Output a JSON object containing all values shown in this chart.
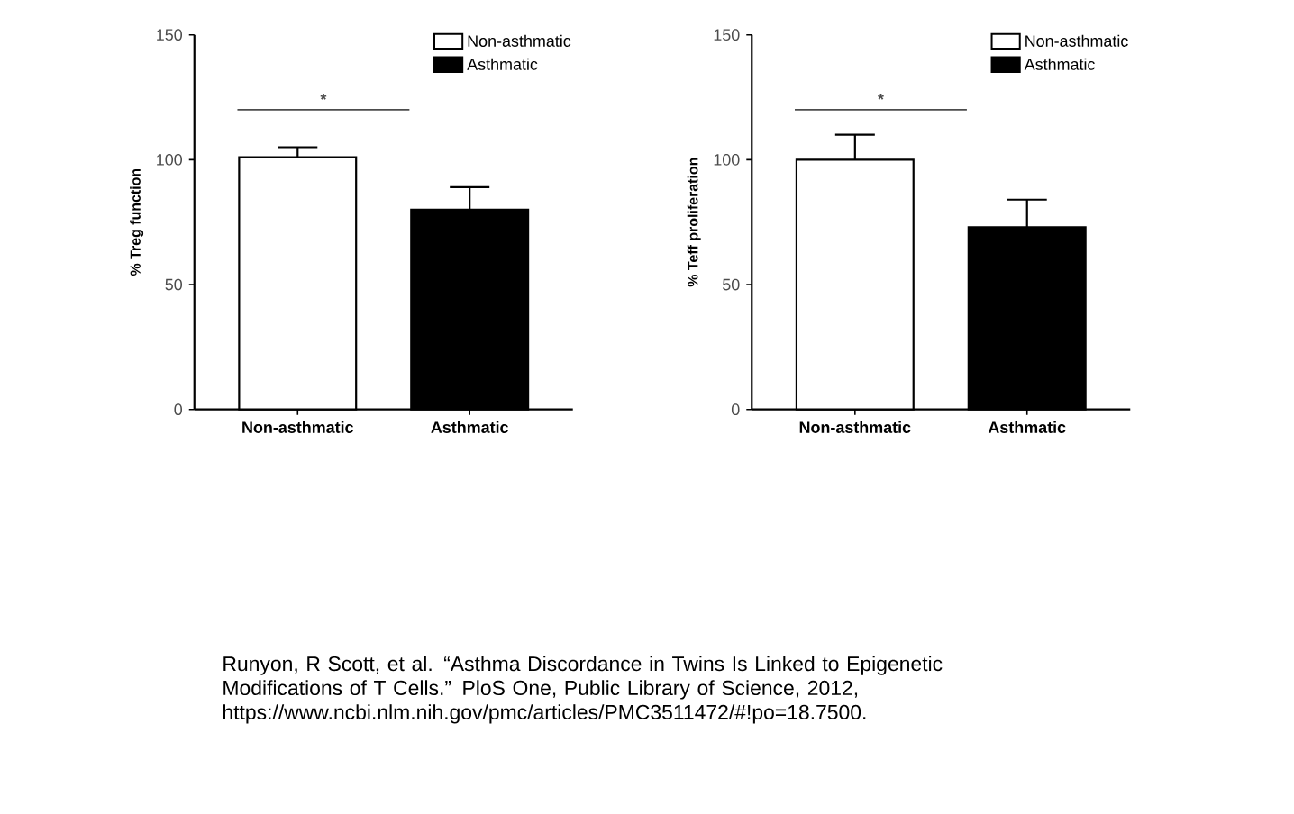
{
  "chart_data": [
    {
      "type": "bar",
      "ylabel": "% Treg function",
      "categories": [
        "Non-asthmatic",
        "Asthmatic"
      ],
      "series": [
        {
          "name": "Non-asthmatic",
          "color": "#ffffff",
          "values": [
            101,
            null
          ],
          "errors": [
            4,
            null
          ]
        },
        {
          "name": "Asthmatic",
          "color": "#000000",
          "values": [
            null,
            80
          ],
          "errors": [
            null,
            9
          ]
        }
      ],
      "ylim": [
        0,
        150
      ],
      "yticks": [
        0,
        50,
        100,
        150
      ],
      "legend": "top right",
      "grid": false,
      "annotations": [
        "*",
        "Runyon, R Scott, et al. “Asthma Discordance in Twins Is Linked to Epigenetic Modifications of T Cells.” PloS One, Public Library of Science, 2012, https://www.ncbi.nlm.nih.gov/pmc/articles/PMC3511472/#!po=18.7500."
      ]
    },
    {
      "type": "bar",
      "ylabel": "% Teff proliferation",
      "categories": [
        "Non-asthmatic",
        "Asthmatic"
      ],
      "series": [
        {
          "name": "Non-asthmatic",
          "color": "#ffffff",
          "values": [
            100,
            null
          ],
          "errors": [
            10,
            null
          ]
        },
        {
          "name": "Asthmatic",
          "color": "#000000",
          "values": [
            null,
            73
          ],
          "errors": [
            null,
            11
          ]
        }
      ],
      "ylim": [
        0,
        150
      ],
      "yticks": [
        0,
        50,
        100,
        150
      ],
      "legend": "top right",
      "grid": false,
      "annotations": [
        "*"
      ]
    }
  ]
}
